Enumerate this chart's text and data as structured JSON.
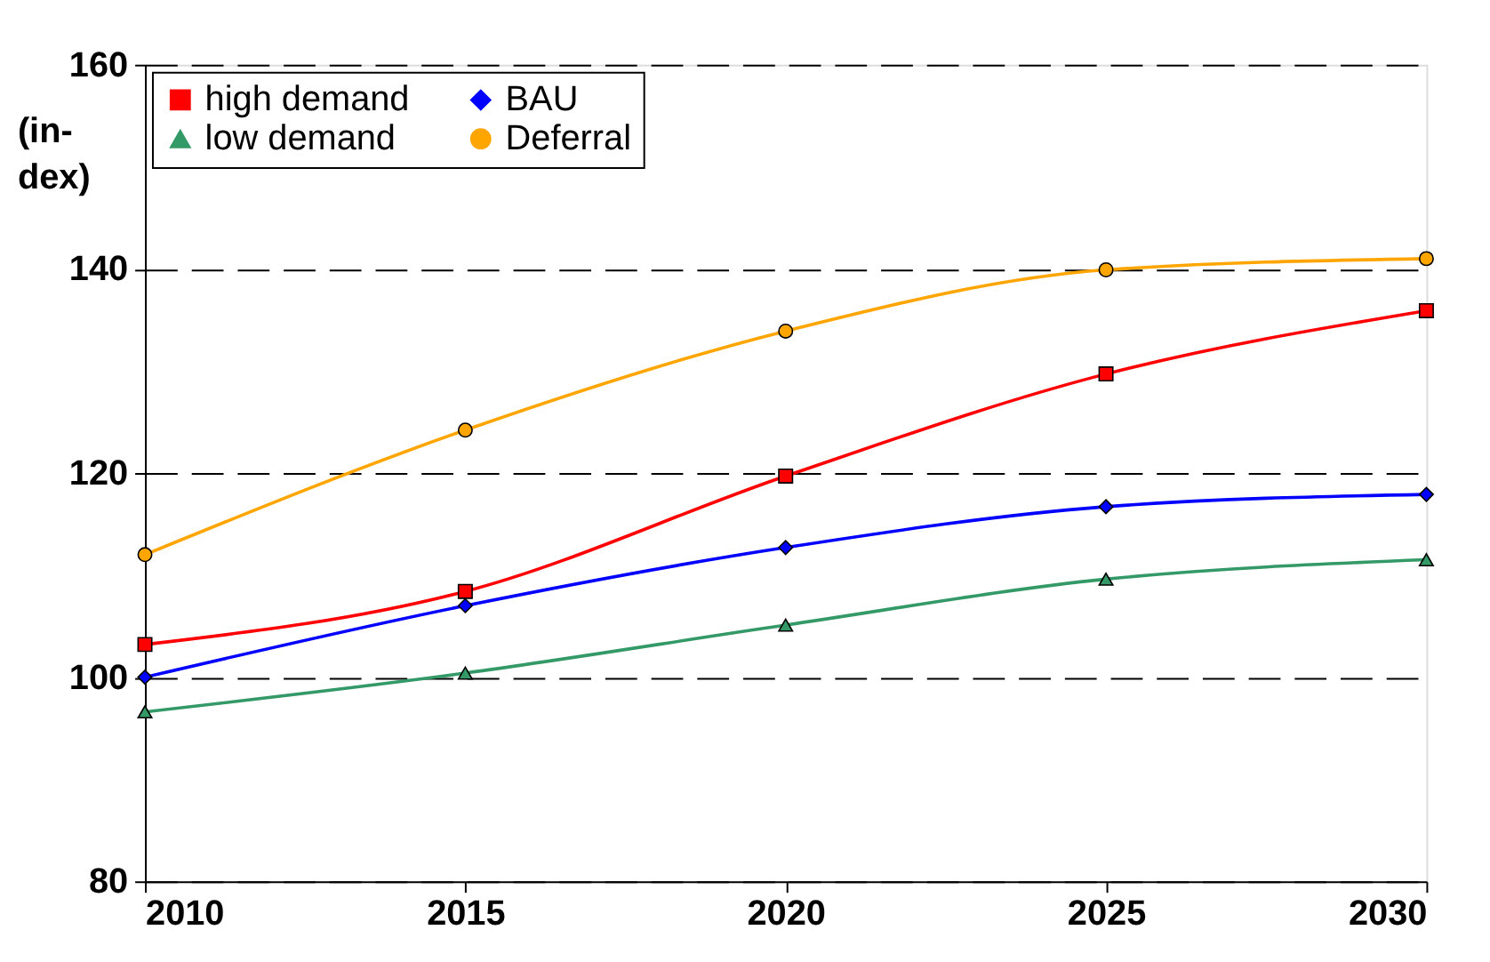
{
  "chart_data": {
    "type": "line",
    "ylabel": "(in-\ndex)",
    "x": [
      2010,
      2015,
      2020,
      2025,
      2030
    ],
    "series": [
      {
        "name": "high demand",
        "color": "#ff0000",
        "marker": "square",
        "values": [
          103.2,
          108.4,
          119.7,
          129.7,
          135.9
        ]
      },
      {
        "name": "BAU",
        "color": "#0000ff",
        "marker": "diamond",
        "values": [
          100,
          107.0,
          112.7,
          116.7,
          117.9
        ]
      },
      {
        "name": "low demand",
        "color": "#339966",
        "marker": "triangle",
        "values": [
          96.6,
          100.4,
          105.1,
          109.6,
          111.5
        ]
      },
      {
        "name": "Deferral",
        "color": "#ffa500",
        "marker": "circle",
        "values": [
          112.0,
          124.2,
          133.9,
          139.9,
          141.0
        ]
      }
    ],
    "xlim": [
      2010,
      2030
    ],
    "xticks": [
      2010,
      2015,
      2020,
      2025,
      2030
    ],
    "ylim": [
      80,
      160
    ],
    "yticks": [
      80,
      100,
      120,
      140,
      160
    ],
    "grid": "y",
    "legend": "top left",
    "line_style": "solid"
  }
}
